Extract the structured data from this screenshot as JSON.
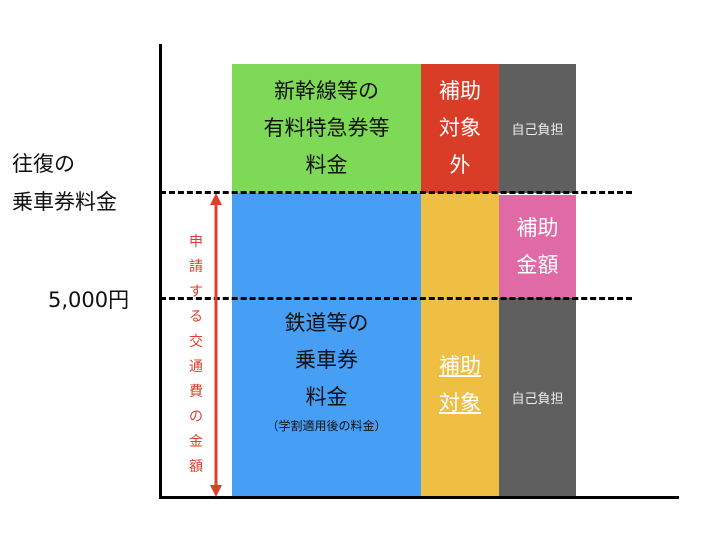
{
  "left_labels": {
    "round_trip_fare": [
      "往復の",
      "乗車券料金"
    ],
    "threshold": "5,000円"
  },
  "blocks": {
    "express": [
      "新幹線等の",
      "有料特急券等",
      "料金"
    ],
    "not_covered": [
      "補助",
      "対象",
      "外"
    ],
    "self_pay_top": "自己負担",
    "subsidy_amount": [
      "補助",
      "金額"
    ],
    "fare": [
      "鉄道等の",
      "乗車券",
      "料金"
    ],
    "fare_note": "（学割適用後の料金）",
    "covered": [
      "補助",
      "対象"
    ],
    "self_pay_bottom": "自己負担"
  },
  "arrow_label": "申請する交通費の金額",
  "colors": {
    "green": "#7ed957",
    "blue": "#469ff5",
    "red": "#d93c27",
    "yellow": "#efbf44",
    "gray": "#5f5f5f",
    "pink": "#df6aa6",
    "arrow": "#d9412b"
  }
}
